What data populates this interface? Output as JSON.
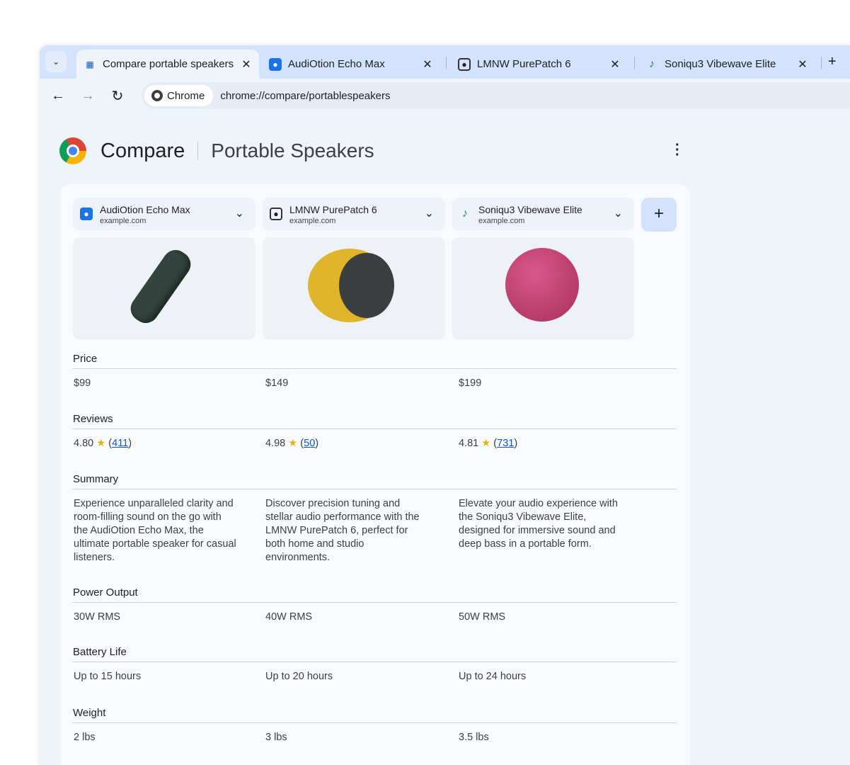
{
  "browser": {
    "tabs": [
      {
        "title": "Compare portable speakers",
        "icon": "compare-icon",
        "active": true
      },
      {
        "title": "AudiOtion Echo Max",
        "icon": "speaker-icon"
      },
      {
        "title": "LMNW PurePatch 6",
        "icon": "speaker-icon"
      },
      {
        "title": "Soniqu3 Vibewave Elite",
        "icon": "music-note-icon"
      }
    ],
    "omnibox": {
      "chip": "Chrome",
      "url": "chrome://compare/portablespeakers"
    }
  },
  "header": {
    "title": "Compare",
    "subtitle": "Portable Speakers"
  },
  "products": [
    {
      "name": "AudiOtion Echo Max",
      "domain": "example.com",
      "color": "#2e3b36"
    },
    {
      "name": "LMNW PurePatch 6",
      "domain": "example.com",
      "color": "#e0b52c"
    },
    {
      "name": "Soniqu3 Vibewave Elite",
      "domain": "example.com",
      "color": "#c2456e"
    }
  ],
  "sections": [
    {
      "label": "Price",
      "values": [
        "$99",
        "$149",
        "$199"
      ]
    },
    {
      "label": "Reviews",
      "values": [
        {
          "rating": "4.80",
          "count": "411"
        },
        {
          "rating": "4.98",
          "count": "50"
        },
        {
          "rating": "4.81",
          "count": "731"
        }
      ]
    },
    {
      "label": "Summary",
      "values": [
        "Experience unparalleled clarity and room-filling sound on the go with the AudiOtion Echo Max, the ultimate portable speaker for casual listeners.",
        "Discover precision tuning and stellar audio performance with the LMNW PurePatch 6, perfect for both home and studio environments.",
        "Elevate your audio experience with the Soniqu3 Vibewave Elite, designed for immersive sound and deep bass in a portable form."
      ]
    },
    {
      "label": "Power Output",
      "values": [
        "30W RMS",
        "40W RMS",
        "50W RMS"
      ]
    },
    {
      "label": "Battery Life",
      "values": [
        "Up to 15 hours",
        "Up to 20 hours",
        "Up to 24 hours"
      ]
    },
    {
      "label": "Weight",
      "values": [
        "2 lbs",
        "3 lbs",
        "3.5 lbs"
      ]
    }
  ]
}
